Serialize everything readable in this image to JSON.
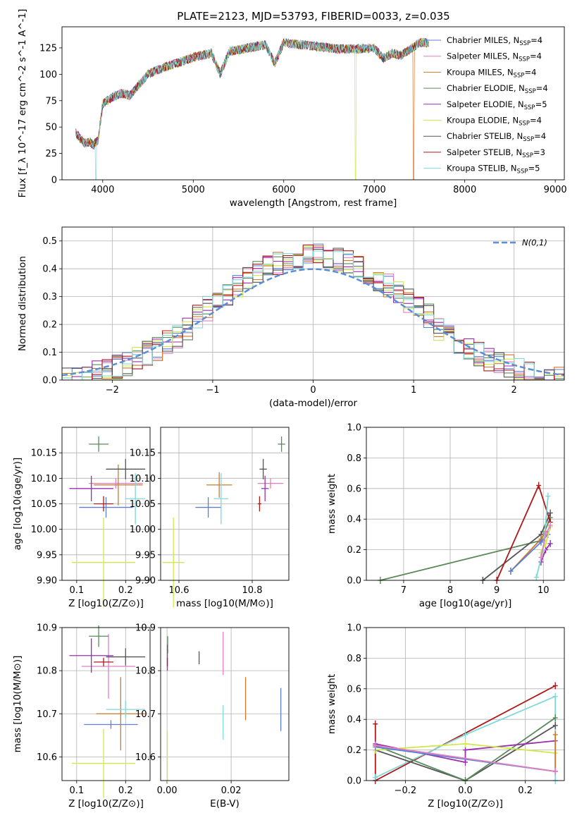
{
  "figure_title": "PLATE=2123, MJD=53793, FIBERID=0033, z=0.035",
  "colors": {
    "Chabrier MILES": "#5b7fd6",
    "Salpeter MILES": "#df80c4",
    "Kroupa MILES": "#cf7a2a",
    "Chabrier ELODIE": "#5a8a5a",
    "Salpeter ELODIE": "#9a2fb0",
    "Kroupa ELODIE": "#cfe84a",
    "Chabrier STELIB": "#555555",
    "Salpeter STELIB": "#b01818",
    "Kroupa STELIB": "#7fd8d8",
    "normal_curve": "#5b8ed6"
  },
  "chart_data": [
    {
      "type": "line",
      "title": "PLATE=2123, MJD=53793, FIBERID=0033, z=0.035",
      "xlabel": "wavelength [Angstrom, rest frame]",
      "ylabel": "Flux [f_λ 10^-17 erg cm^-2 s^-1 A^-1]",
      "xlim": [
        3550,
        9100
      ],
      "ylim": [
        0,
        145
      ],
      "xticks": [
        4000,
        5000,
        6000,
        7000,
        8000,
        9000
      ],
      "yticks": [
        0,
        25,
        50,
        75,
        100,
        125
      ],
      "legend_position": "right",
      "grid": false,
      "spectrum_envelope": {
        "x": [
          3700,
          3760,
          3800,
          3850,
          3900,
          3950,
          4000,
          4100,
          4200,
          4300,
          4400,
          4500,
          4600,
          4800,
          5000,
          5200,
          5300,
          5400,
          5500,
          5600,
          5800,
          5900,
          6000,
          6200,
          6400,
          6600,
          6800,
          7000,
          7100,
          7200,
          7300,
          7400,
          7500
        ],
        "y": [
          45,
          38,
          35,
          36,
          33,
          38,
          72,
          78,
          82,
          80,
          90,
          100,
          104,
          110,
          116,
          120,
          100,
          122,
          123,
          125,
          128,
          110,
          130,
          128,
          126,
          124,
          124,
          125,
          115,
          120,
          118,
          124,
          130
        ]
      },
      "series": [
        {
          "name": "Chabrier MILES, N_SSP=4"
        },
        {
          "name": "Salpeter MILES, N_SSP=4"
        },
        {
          "name": "Kroupa MILES, N_SSP=4",
          "drop_at": 7430
        },
        {
          "name": "Chabrier ELODIE, N_SSP=4"
        },
        {
          "name": "Salpeter ELODIE, N_SSP=5"
        },
        {
          "name": "Kroupa ELODIE, N_SSP=4",
          "drop_at": 6790
        },
        {
          "name": "Chabrier STELIB, N_SSP=4"
        },
        {
          "name": "Salpeter STELIB, N_SSP=3"
        },
        {
          "name": "Kroupa STELIB, N_SSP=5",
          "drop_at": 3920
        }
      ]
    },
    {
      "type": "histogram",
      "xlabel": "(data-model)/error",
      "ylabel": "Normed distribution",
      "xlim": [
        -2.5,
        2.5
      ],
      "ylim": [
        0,
        0.55
      ],
      "xticks": [
        -2,
        -1,
        0,
        1,
        2
      ],
      "yticks": [
        0.0,
        0.1,
        0.2,
        0.3,
        0.4,
        0.5
      ],
      "grid": true,
      "legend_position": "upper right",
      "legend": [
        "N(0,1)"
      ],
      "bin_width": 0.1,
      "reference_curve": {
        "name": "N(0,1)",
        "type": "gaussian",
        "mean": 0,
        "std": 1
      }
    },
    {
      "type": "scatter",
      "xlabel": "Z [log10(Z/Z⊙)]",
      "ylabel": "age [log10(age/yr)]",
      "xlim": [
        0.07,
        0.25
      ],
      "ylim": [
        9.9,
        10.2
      ],
      "xticks": [
        0.1,
        0.2
      ],
      "yticks": [
        9.9,
        9.95,
        10.0,
        10.05,
        10.1,
        10.15
      ],
      "grid": true,
      "points": [
        {
          "series": "Chabrier MILES",
          "x": 0.16,
          "y": 10.043,
          "xerr": 0.055,
          "yerr": 0.02
        },
        {
          "series": "Salpeter MILES",
          "x": 0.18,
          "y": 10.09,
          "xerr": 0.055,
          "yerr": 0.01
        },
        {
          "series": "Kroupa MILES",
          "x": 0.185,
          "y": 10.087,
          "xerr": 0.05,
          "yerr": 0.04
        },
        {
          "series": "Chabrier ELODIE",
          "x": 0.145,
          "y": 10.167,
          "xerr": 0.02,
          "yerr": 0.015
        },
        {
          "series": "Salpeter ELODIE",
          "x": 0.13,
          "y": 10.08,
          "xerr": 0.045,
          "yerr": 0.025
        },
        {
          "series": "Kroupa ELODIE",
          "x": 0.155,
          "y": 9.935,
          "xerr": 0.065,
          "yerr": 0.088
        },
        {
          "series": "Chabrier STELIB",
          "x": 0.2,
          "y": 10.118,
          "xerr": 0.04,
          "yerr": 0.02
        },
        {
          "series": "Salpeter STELIB",
          "x": 0.155,
          "y": 10.05,
          "xerr": 0.02,
          "yerr": 0.015
        },
        {
          "series": "Kroupa STELIB",
          "x": 0.22,
          "y": 10.06,
          "xerr": 0.02,
          "yerr": 0.05
        }
      ]
    },
    {
      "type": "scatter",
      "xlabel": "mass [log10(M/M⊙)]",
      "ylabel": "",
      "xlim": [
        10.55,
        10.9
      ],
      "ylim": [
        9.9,
        10.2
      ],
      "xticks": [
        10.6,
        10.8
      ],
      "yticks": [
        9.9,
        9.95,
        10.0,
        10.05,
        10.1,
        10.15
      ],
      "grid": true,
      "points": [
        {
          "series": "Chabrier MILES",
          "x": 10.68,
          "y": 10.043,
          "xerr": 0.035,
          "yerr": 0.02
        },
        {
          "series": "Salpeter MILES",
          "x": 10.85,
          "y": 10.09,
          "xerr": 0.035,
          "yerr": 0.01
        },
        {
          "series": "Kroupa MILES",
          "x": 10.71,
          "y": 10.087,
          "xerr": 0.035,
          "yerr": 0.025
        },
        {
          "series": "Chabrier ELODIE",
          "x": 10.88,
          "y": 10.167,
          "xerr": 0.01,
          "yerr": 0.015
        },
        {
          "series": "Salpeter ELODIE",
          "x": 10.835,
          "y": 10.08,
          "xerr": 0.01,
          "yerr": 0.025
        },
        {
          "series": "Kroupa ELODIE",
          "x": 10.585,
          "y": 9.935,
          "xerr": 0.03,
          "yerr": 0.088
        },
        {
          "series": "Chabrier STELIB",
          "x": 10.83,
          "y": 10.118,
          "xerr": 0.01,
          "yerr": 0.02
        },
        {
          "series": "Salpeter STELIB",
          "x": 10.82,
          "y": 10.05,
          "xerr": 0.005,
          "yerr": 0.015
        },
        {
          "series": "Kroupa STELIB",
          "x": 10.715,
          "y": 10.06,
          "xerr": 0.02,
          "yerr": 0.05
        }
      ]
    },
    {
      "type": "line",
      "xlabel": "age [log10(age/yr)]",
      "ylabel": "mass weight",
      "xlim": [
        6.2,
        10.45
      ],
      "ylim": [
        0,
        1.0
      ],
      "xticks": [
        7,
        8,
        9,
        10
      ],
      "yticks": [
        0.0,
        0.2,
        0.4,
        0.6,
        0.8,
        1.0
      ],
      "grid": true,
      "series": [
        {
          "name": "Chabrier ELODIE",
          "x": [
            6.5,
            9.95,
            10.15
          ],
          "y": [
            0.0,
            0.26,
            0.41
          ]
        },
        {
          "name": "Chabrier STELIB",
          "x": [
            8.7,
            9.95,
            10.15
          ],
          "y": [
            0.0,
            0.3,
            0.44
          ]
        },
        {
          "name": "Salpeter STELIB",
          "x": [
            9.0,
            9.9,
            10.15
          ],
          "y": [
            0.0,
            0.62,
            0.38
          ]
        },
        {
          "name": "Kroupa MILES",
          "x": [
            9.3,
            9.95,
            10.05
          ],
          "y": [
            0.06,
            0.27,
            0.32
          ]
        },
        {
          "name": "Chabrier MILES",
          "x": [
            9.3,
            9.95,
            10.1
          ],
          "y": [
            0.06,
            0.25,
            0.3
          ]
        },
        {
          "name": "Salpeter ELODIE",
          "x": [
            9.95,
            10.05,
            10.15
          ],
          "y": [
            0.12,
            0.2,
            0.24
          ]
        },
        {
          "name": "Kroupa STELIB",
          "x": [
            9.85,
            10.0,
            10.1
          ],
          "y": [
            0.02,
            0.2,
            0.55
          ]
        },
        {
          "name": "Kroupa ELODIE",
          "x": [
            9.95,
            10.05,
            10.15
          ],
          "y": [
            0.18,
            0.24,
            0.35
          ]
        },
        {
          "name": "Salpeter MILES",
          "x": [
            9.95,
            10.05,
            10.15
          ],
          "y": [
            0.15,
            0.3,
            0.36
          ]
        }
      ]
    },
    {
      "type": "scatter",
      "xlabel": "Z [log10(Z/Z⊙)]",
      "ylabel": "mass [log10(M/M⊙)]",
      "xlim": [
        0.07,
        0.25
      ],
      "ylim": [
        10.545,
        10.9
      ],
      "xticks": [
        0.1,
        0.2
      ],
      "yticks": [
        10.6,
        10.7,
        10.8,
        10.9
      ],
      "grid": true,
      "points": [
        {
          "series": "Chabrier MILES",
          "x": 0.17,
          "y": 10.675,
          "xerr": 0.055,
          "yerr": 0.01
        },
        {
          "series": "Salpeter MILES",
          "x": 0.165,
          "y": 10.81,
          "xerr": 0.055,
          "yerr": 0.075
        },
        {
          "series": "Kroupa MILES",
          "x": 0.19,
          "y": 10.7,
          "xerr": 0.05,
          "yerr": 0.085
        },
        {
          "series": "Chabrier ELODIE",
          "x": 0.145,
          "y": 10.88,
          "xerr": 0.02,
          "yerr": 0.025
        },
        {
          "series": "Salpeter ELODIE",
          "x": 0.13,
          "y": 10.835,
          "xerr": 0.045,
          "yerr": 0.04
        },
        {
          "series": "Kroupa ELODIE",
          "x": 0.155,
          "y": 10.585,
          "xerr": 0.065,
          "yerr": 0.08
        },
        {
          "series": "Chabrier STELIB",
          "x": 0.2,
          "y": 10.832,
          "xerr": 0.04,
          "yerr": 0.02
        },
        {
          "series": "Salpeter STELIB",
          "x": 0.155,
          "y": 10.82,
          "xerr": 0.02,
          "yerr": 0.01
        },
        {
          "series": "Kroupa STELIB",
          "x": 0.2,
          "y": 10.71,
          "xerr": 0.04,
          "yerr": 0.02
        }
      ]
    },
    {
      "type": "scatter",
      "xlabel": "E(B-V)",
      "ylabel": "",
      "xlim": [
        -0.002,
        0.038
      ],
      "ylim": [
        10.545,
        10.9
      ],
      "xticks": [
        0.0,
        0.02
      ],
      "yticks": [
        10.6,
        10.7,
        10.8,
        10.9
      ],
      "grid": true,
      "points": [
        {
          "series": "Chabrier MILES",
          "x": 0.0355,
          "y": 10.71,
          "yerr": 0.05
        },
        {
          "series": "Salpeter MILES",
          "x": 0.0175,
          "y": 10.84,
          "yerr": 0.05
        },
        {
          "series": "Kroupa MILES",
          "x": 0.0245,
          "y": 10.735,
          "yerr": 0.05
        },
        {
          "series": "Chabrier ELODIE",
          "x": 0.0002,
          "y": 10.86,
          "yerr": 0.02
        },
        {
          "series": "Salpeter ELODIE",
          "x": 0.0001,
          "y": 10.83,
          "yerr": 0.03
        },
        {
          "series": "Kroupa ELODIE",
          "x": 0.0001,
          "y": 10.6,
          "yerr": 0.06
        },
        {
          "series": "Chabrier STELIB",
          "x": 0.01,
          "y": 10.83,
          "yerr": 0.015
        },
        {
          "series": "Salpeter STELIB",
          "x": 0.0001,
          "y": 10.82,
          "yerr": 0.01
        },
        {
          "series": "Kroupa STELIB",
          "x": 0.0175,
          "y": 10.68,
          "yerr": 0.04
        }
      ]
    },
    {
      "type": "line",
      "xlabel": "Z [log10(Z/Z⊙)]",
      "ylabel": "mass weight",
      "xlim": [
        -0.33,
        0.33
      ],
      "ylim": [
        0,
        1.0
      ],
      "xticks": [
        -0.2,
        0.0,
        0.2
      ],
      "yticks": [
        0.0,
        0.2,
        0.4,
        0.6,
        0.8,
        1.0
      ],
      "grid": true,
      "series": [
        {
          "name": "Salpeter STELIB",
          "x": [
            -0.3,
            -0.3,
            0.3
          ],
          "y": [
            0.37,
            0.0,
            0.62
          ]
        },
        {
          "name": "Kroupa STELIB",
          "x": [
            -0.3,
            0.0,
            0.3,
            0.3
          ],
          "y": [
            0.02,
            0.3,
            0.55,
            0.0
          ]
        },
        {
          "name": "Chabrier STELIB",
          "x": [
            -0.3,
            0.0,
            0.3
          ],
          "y": [
            0.2,
            0.0,
            0.36
          ]
        },
        {
          "name": "Chabrier ELODIE",
          "x": [
            -0.3,
            0.0,
            0.3
          ],
          "y": [
            0.23,
            0.0,
            0.41
          ]
        },
        {
          "name": "Salpeter ELODIE",
          "x": [
            -0.3,
            0.0,
            0.0,
            0.3
          ],
          "y": [
            0.24,
            0.12,
            0.2,
            0.26
          ]
        },
        {
          "name": "Kroupa ELODIE",
          "x": [
            -0.3,
            0.0,
            0.3
          ],
          "y": [
            0.2,
            0.24,
            0.18
          ]
        },
        {
          "name": "Kroupa MILES",
          "x": [
            -0.3,
            0.3,
            0.3
          ],
          "y": [
            0.23,
            0.06,
            0.3
          ]
        },
        {
          "name": "Chabrier MILES",
          "x": [
            -0.3,
            0.3
          ],
          "y": [
            0.22,
            0.06
          ]
        },
        {
          "name": "Salpeter MILES",
          "x": [
            -0.3,
            0.3
          ],
          "y": [
            0.23,
            0.06
          ]
        }
      ]
    }
  ]
}
